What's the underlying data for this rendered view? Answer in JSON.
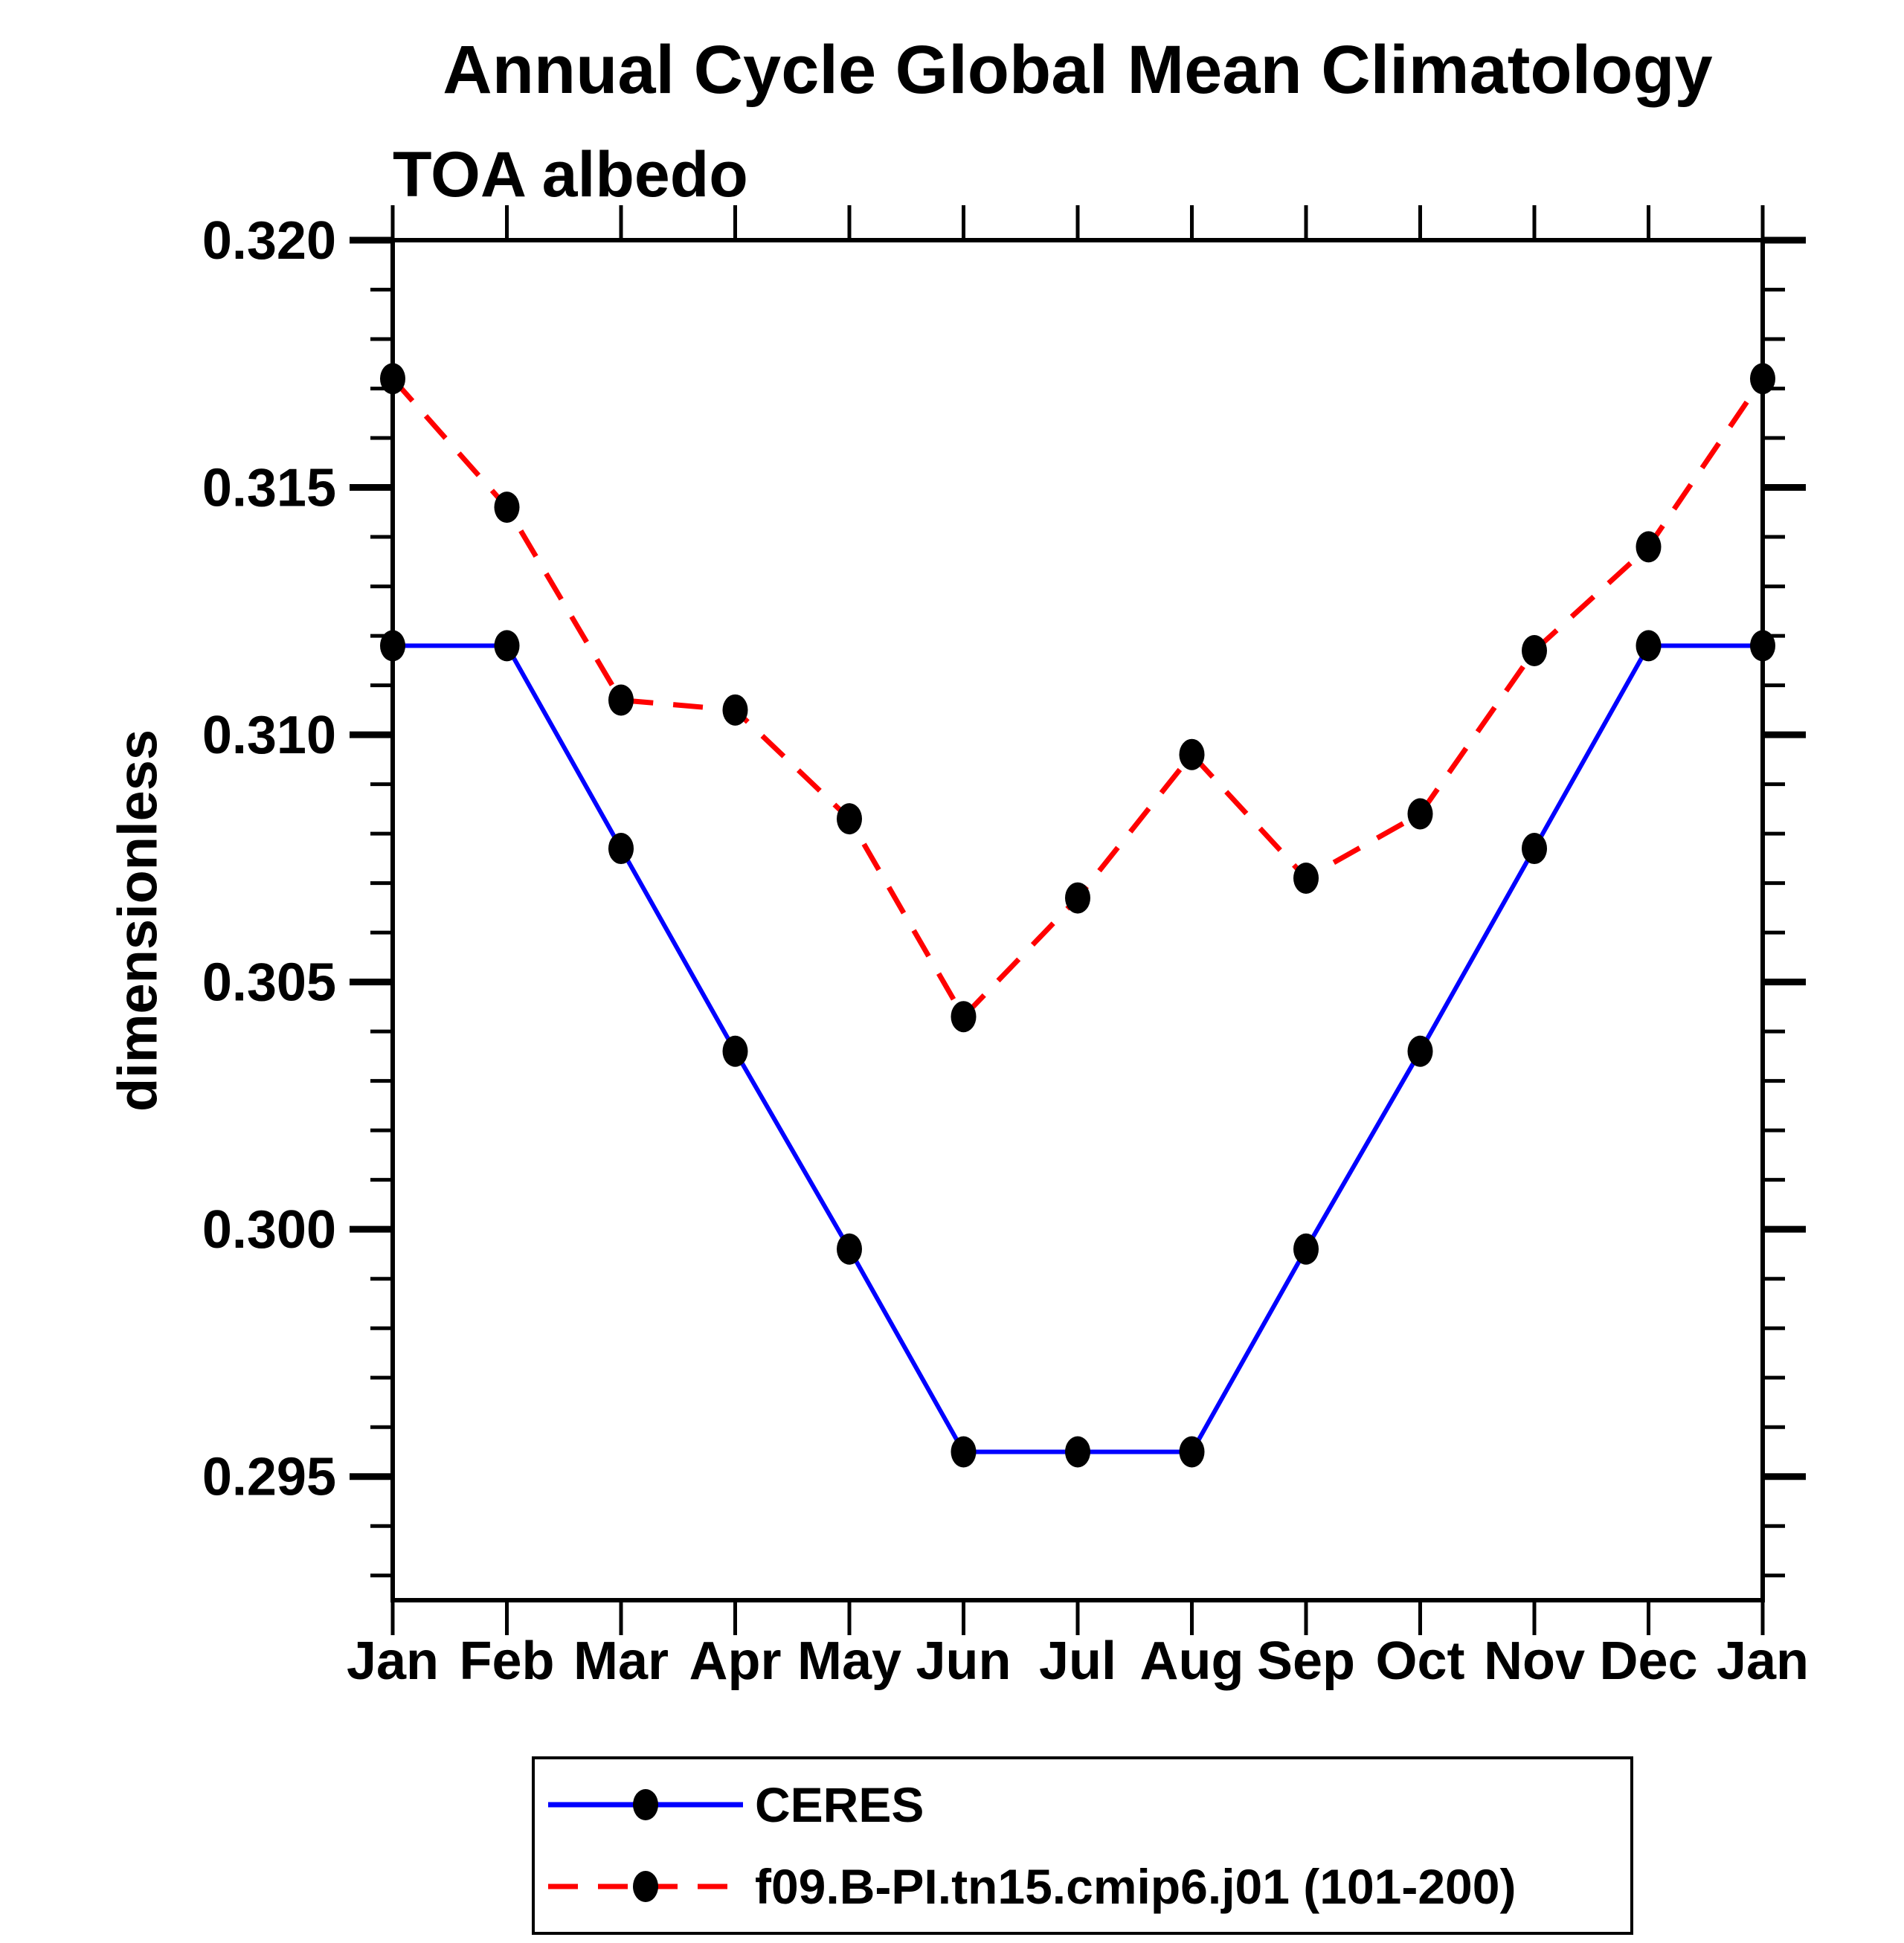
{
  "title": "Annual Cycle Global Mean Climatology",
  "subtitle": "TOA albedo",
  "ylabel": "dimensionless",
  "colors": {
    "background": "#ffffff",
    "axis": "#000000",
    "marker": "#000000",
    "ceres_line": "#0000ff",
    "model_line": "#ff0000"
  },
  "chart_data": {
    "type": "line",
    "categories": [
      "Jan",
      "Feb",
      "Mar",
      "Apr",
      "May",
      "Jun",
      "Jul",
      "Aug",
      "Sep",
      "Oct",
      "Nov",
      "Dec",
      "Jan"
    ],
    "series": [
      {
        "name": "CERES",
        "color": "#0000ff",
        "line_style": "solid",
        "line_width": 6,
        "marker": "filled-circle",
        "marker_color": "#000000",
        "values": [
          0.3118,
          0.3118,
          0.3077,
          0.3036,
          0.2996,
          0.2955,
          0.2955,
          0.2955,
          0.2996,
          0.3036,
          0.3077,
          0.3118,
          0.3118
        ]
      },
      {
        "name": "f09.B-PI.tn15.cmip6.j01 (101-200)",
        "color": "#ff0000",
        "line_style": "dashed",
        "line_width": 7,
        "marker": "filled-circle",
        "marker_color": "#000000",
        "values": [
          0.3172,
          0.3146,
          0.3107,
          0.3105,
          0.3083,
          0.3043,
          0.3067,
          0.3096,
          0.3071,
          0.3084,
          0.3117,
          0.3138,
          0.3172
        ]
      }
    ],
    "xlabel": "",
    "ylim": [
      0.2925,
      0.32
    ],
    "yticks_major": {
      "values": [
        0.295,
        0.3,
        0.305,
        0.31,
        0.315,
        0.32
      ],
      "labels": [
        "0.295",
        "0.300",
        "0.305",
        "0.310",
        "0.315",
        "0.320"
      ]
    },
    "ytick_minor_step": 0.001,
    "grid": false,
    "tick_direction": "out",
    "legend_position": "bottom"
  }
}
